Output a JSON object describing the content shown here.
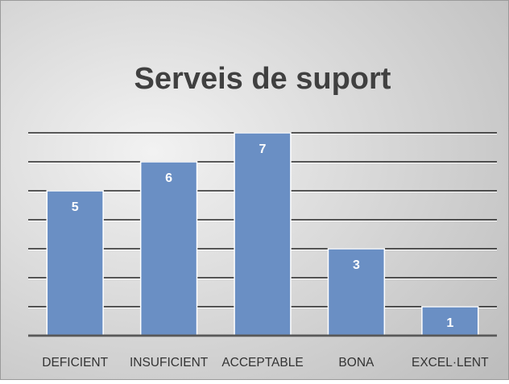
{
  "chart_data": {
    "type": "bar",
    "title": "Serveis de suport",
    "categories": [
      "DEFICIENT",
      "INSUFICIENT",
      "ACCEPTABLE",
      "BONA",
      "EXCEL·LENT"
    ],
    "values": [
      5,
      6,
      7,
      3,
      1
    ],
    "color": "#6a8fc4",
    "ylim": [
      0,
      7
    ],
    "yticks": [
      0,
      1,
      2,
      3,
      4,
      5,
      6,
      7
    ],
    "grid": true
  }
}
